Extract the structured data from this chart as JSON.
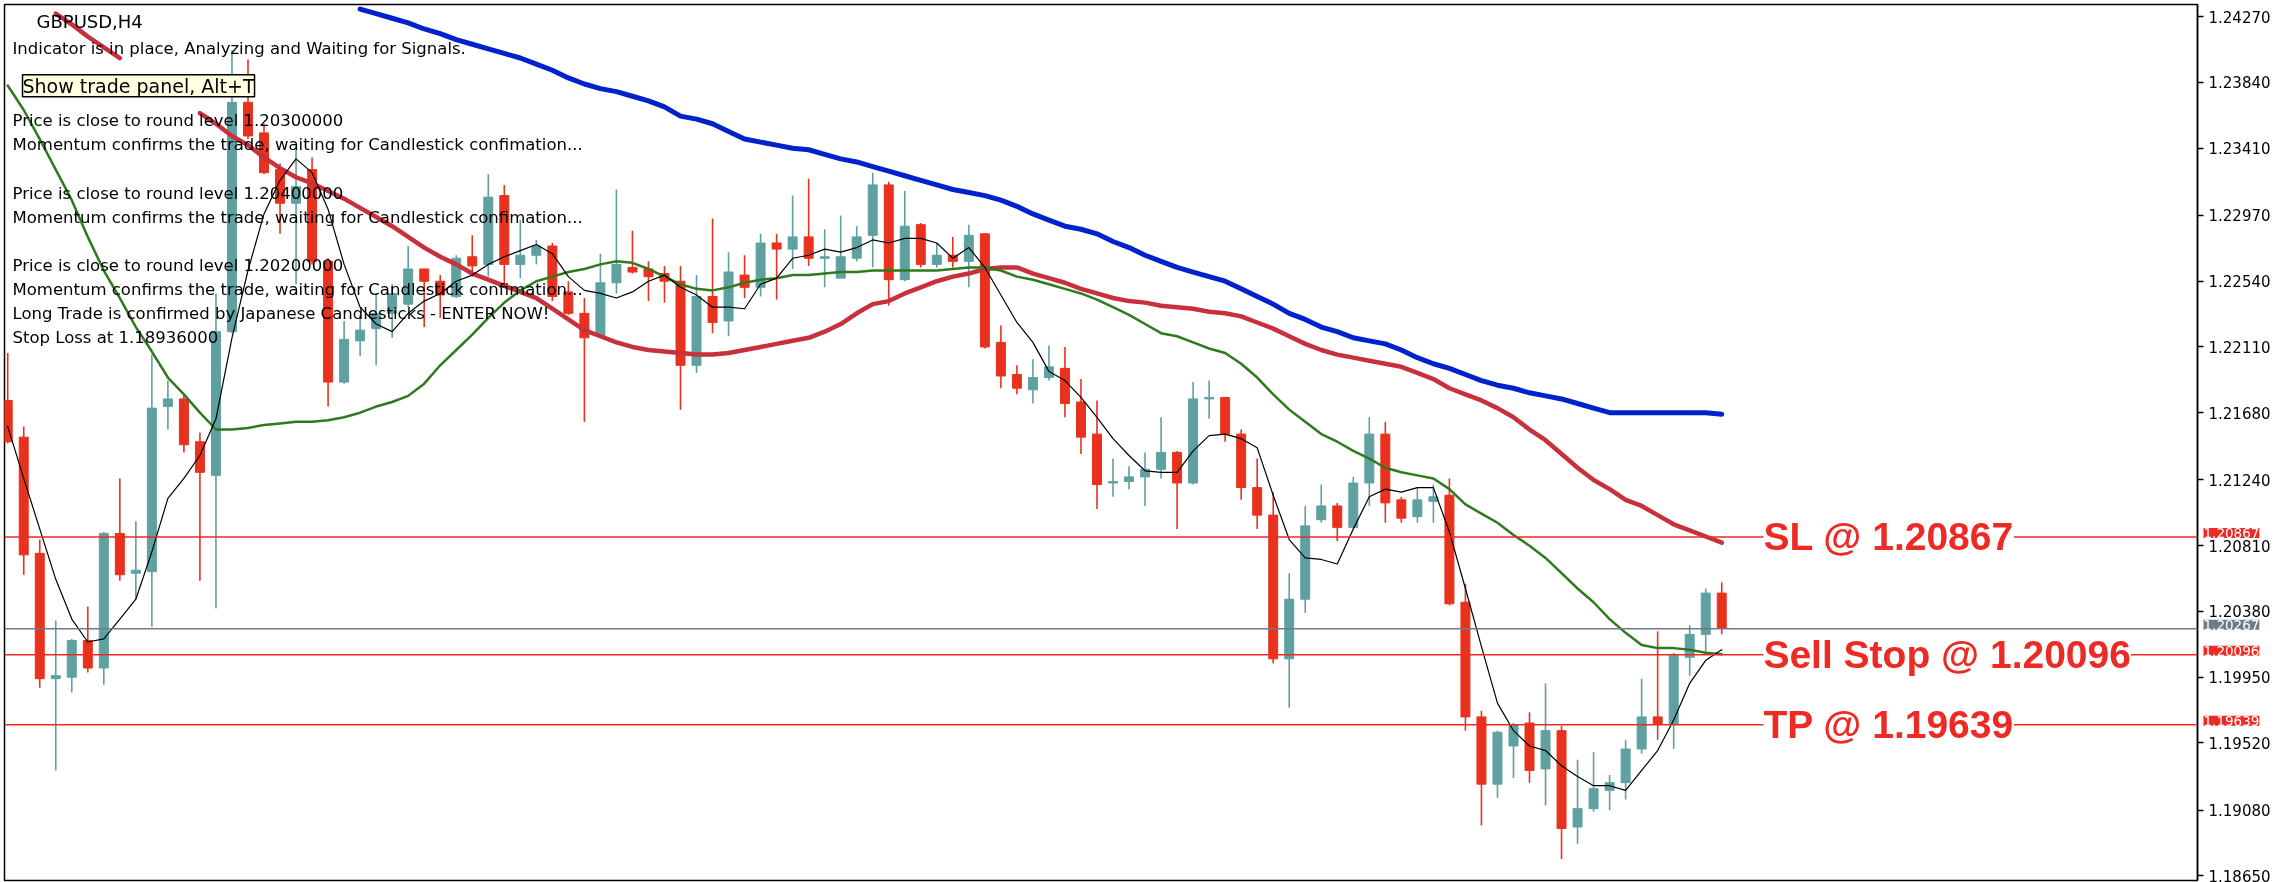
{
  "chart_data": {
    "type": "candlestick",
    "title": "GBPUSD,H4",
    "categories": [
      null,
      null,
      null,
      null,
      null,
      null,
      null,
      null,
      null,
      null,
      null,
      null,
      null,
      null,
      null,
      null,
      null,
      null,
      null,
      null,
      null,
      null,
      null,
      null,
      null,
      null,
      null,
      null,
      null,
      null,
      null,
      null,
      null,
      null,
      null,
      null,
      null,
      null,
      null,
      null,
      null,
      null,
      null,
      null,
      null,
      null,
      null,
      null,
      null,
      null,
      null,
      null,
      null,
      null,
      null,
      null,
      null,
      null,
      null,
      null,
      null,
      null,
      null,
      null,
      null,
      null,
      null,
      null,
      null,
      null,
      null,
      null,
      null,
      null,
      null,
      null,
      null,
      null,
      null,
      null,
      null,
      null,
      null,
      null,
      null,
      null,
      null,
      null,
      null,
      null,
      null,
      null,
      null,
      null,
      null,
      null,
      null,
      null,
      null,
      null,
      null,
      null,
      null,
      null,
      null,
      null,
      null,
      null
    ],
    "ylim": [
      1.1862,
      1.2435
    ],
    "yticks": [
      {
        "value": 1.2427,
        "label": "1.24270"
      },
      {
        "value": 1.2384,
        "label": "1.23840"
      },
      {
        "value": 1.2341,
        "label": "1.23410"
      },
      {
        "value": 1.2297,
        "label": "1.22970"
      },
      {
        "value": 1.2254,
        "label": "1.22540"
      },
      {
        "value": 1.2211,
        "label": "1.22110"
      },
      {
        "value": 1.2168,
        "label": "1.21680"
      },
      {
        "value": 1.2124,
        "label": "1.21240"
      },
      {
        "value": 1.2081,
        "label": "1.20810"
      },
      {
        "value": 1.2038,
        "label": "1.20380"
      },
      {
        "value": 1.1995,
        "label": "1.19950"
      },
      {
        "value": 1.1952,
        "label": "1.19520"
      },
      {
        "value": 1.1908,
        "label": "1.19080"
      },
      {
        "value": 1.1865,
        "label": "1.18650"
      }
    ],
    "tick_labels": "y",
    "series": [
      {
        "ohlc": [
          [
            1.2176,
            1.2207,
            1.2148,
            1.2149
          ],
          [
            1.2152,
            1.2159,
            1.2062,
            1.2075
          ],
          [
            1.2076,
            1.2085,
            1.1988,
            1.1994
          ],
          [
            1.1994,
            1.2032,
            1.1934,
            1.1996
          ],
          [
            1.1995,
            1.202,
            1.1985,
            1.2019
          ],
          [
            1.2019,
            1.2041,
            1.1998,
            1.2001
          ],
          [
            1.2001,
            1.209,
            1.199,
            1.2089
          ],
          [
            1.2089,
            1.2125,
            1.2058,
            1.2062
          ],
          [
            1.2063,
            1.2097,
            1.2046,
            1.2065
          ],
          [
            1.2064,
            1.2206,
            1.2028,
            1.2171
          ],
          [
            1.2172,
            1.2189,
            1.2157,
            1.2177
          ],
          [
            1.2177,
            1.218,
            1.2142,
            1.2147
          ],
          [
            1.2149,
            1.2155,
            1.2058,
            1.2129
          ],
          [
            1.2127,
            1.2246,
            1.204,
            1.2221
          ],
          [
            1.2221,
            1.2405,
            1.222,
            1.2371
          ],
          [
            1.2371,
            1.2399,
            1.2347,
            1.2349
          ],
          [
            1.2351,
            1.2357,
            1.2324,
            1.2325
          ],
          [
            1.2327,
            1.2331,
            1.2285,
            1.2305
          ],
          [
            1.2305,
            1.234,
            1.2252,
            1.2316
          ],
          [
            1.2327,
            1.2335,
            1.2265,
            1.2267
          ],
          [
            1.2267,
            1.2269,
            1.2172,
            1.2188
          ],
          [
            1.2188,
            1.2228,
            1.2187,
            1.2216
          ],
          [
            1.2215,
            1.2232,
            1.2205,
            1.2222
          ],
          [
            1.2223,
            1.2246,
            1.2199,
            1.2233
          ],
          [
            1.2233,
            1.2252,
            1.2217,
            1.2246
          ],
          [
            1.2239,
            1.2277,
            1.2237,
            1.2262
          ],
          [
            1.2262,
            1.2262,
            1.2224,
            1.2254
          ],
          [
            1.2254,
            1.2258,
            1.223,
            1.2245
          ],
          [
            1.2244,
            1.2271,
            1.2243,
            1.2269
          ],
          [
            1.227,
            1.2284,
            1.2257,
            1.2264
          ],
          [
            1.2265,
            1.2324,
            1.2257,
            1.2309
          ],
          [
            1.231,
            1.2317,
            1.225,
            1.2265
          ],
          [
            1.2265,
            1.2294,
            1.2256,
            1.2271
          ],
          [
            1.2271,
            1.2281,
            1.2265,
            1.2277
          ],
          [
            1.2277,
            1.2279,
            1.2241,
            1.2244
          ],
          [
            1.2247,
            1.2254,
            1.2232,
            1.2233
          ],
          [
            1.2233,
            1.2243,
            1.2162,
            1.2217
          ],
          [
            1.2218,
            1.2272,
            1.2217,
            1.2253
          ],
          [
            1.2253,
            1.2314,
            1.2246,
            1.2265
          ],
          [
            1.2263,
            1.2287,
            1.2259,
            1.226
          ],
          [
            1.2262,
            1.2267,
            1.2241,
            1.2257
          ],
          [
            1.2259,
            1.2264,
            1.224,
            1.2254
          ],
          [
            1.2254,
            1.2264,
            1.217,
            1.2199
          ],
          [
            1.2199,
            1.2258,
            1.2194,
            1.2244
          ],
          [
            1.2244,
            1.2295,
            1.222,
            1.2227
          ],
          [
            1.2228,
            1.2273,
            1.2218,
            1.226
          ],
          [
            1.2258,
            1.2271,
            1.2243,
            1.225
          ],
          [
            1.225,
            1.2285,
            1.2244,
            1.2279
          ],
          [
            1.2279,
            1.2285,
            1.2242,
            1.2275
          ],
          [
            1.2275,
            1.231,
            1.2262,
            1.2283
          ],
          [
            1.2283,
            1.2321,
            1.2264,
            1.2269
          ],
          [
            1.2269,
            1.2288,
            1.225,
            1.227
          ],
          [
            1.2256,
            1.2297,
            1.2256,
            1.227
          ],
          [
            1.2269,
            1.229,
            1.2267,
            1.2283
          ],
          [
            1.2284,
            1.2325,
            1.2263,
            1.2317
          ],
          [
            1.2317,
            1.2319,
            1.2238,
            1.2255
          ],
          [
            1.2255,
            1.2313,
            1.2254,
            1.229
          ],
          [
            1.2291,
            1.2292,
            1.2263,
            1.2265
          ],
          [
            1.2265,
            1.2279,
            1.2263,
            1.2271
          ],
          [
            1.2271,
            1.2283,
            1.2263,
            1.2267
          ],
          [
            1.2267,
            1.2291,
            1.225,
            1.2284
          ],
          [
            1.2285,
            1.2285,
            1.221,
            1.2211
          ],
          [
            1.2214,
            1.2225,
            1.2184,
            1.2192
          ],
          [
            1.2193,
            1.2199,
            1.218,
            1.2184
          ],
          [
            1.2183,
            1.2203,
            1.2174,
            1.2191
          ],
          [
            1.2191,
            1.2212,
            1.2189,
            1.2198
          ],
          [
            1.2197,
            1.2211,
            1.2165,
            1.2174
          ],
          [
            1.2175,
            1.219,
            1.2141,
            1.2152
          ],
          [
            1.2154,
            1.2176,
            1.2105,
            1.2121
          ],
          [
            1.2122,
            1.2138,
            1.2113,
            1.2123
          ],
          [
            1.2123,
            1.2133,
            1.2118,
            1.2126
          ],
          [
            1.2126,
            1.2142,
            1.2107,
            1.2131
          ],
          [
            1.2131,
            1.2165,
            1.2125,
            1.2142
          ],
          [
            1.2142,
            1.2143,
            1.2092,
            1.2122
          ],
          [
            1.2122,
            1.2188,
            1.2121,
            1.2177
          ],
          [
            1.2177,
            1.2189,
            1.2164,
            1.2178
          ],
          [
            1.2178,
            1.2178,
            1.2149,
            1.2154
          ],
          [
            1.2154,
            1.2157,
            1.2111,
            1.2119
          ],
          [
            1.2119,
            1.2138,
            1.2092,
            1.2101
          ],
          [
            1.2101,
            1.2116,
            1.2004,
            1.2007
          ],
          [
            1.2007,
            1.2063,
            1.1975,
            1.2046
          ],
          [
            1.2046,
            1.2107,
            1.2037,
            1.2094
          ],
          [
            1.2098,
            1.2121,
            1.2096,
            1.2107
          ],
          [
            1.2107,
            1.2109,
            1.2084,
            1.2093
          ],
          [
            1.2093,
            1.2126,
            1.2092,
            1.2122
          ],
          [
            1.2122,
            1.2165,
            1.2107,
            1.2154
          ],
          [
            1.2154,
            1.2162,
            1.2096,
            1.2109
          ],
          [
            1.2111,
            1.2113,
            1.2096,
            1.2099
          ],
          [
            1.21,
            1.2119,
            1.2096,
            1.2111
          ],
          [
            1.211,
            1.2121,
            1.2096,
            1.2113
          ],
          [
            1.2114,
            1.2125,
            1.2042,
            1.2043
          ],
          [
            1.2044,
            1.2056,
            1.196,
            1.1969
          ],
          [
            1.1969,
            1.1973,
            1.1898,
            1.1925
          ],
          [
            1.1925,
            1.196,
            1.1916,
            1.1959
          ],
          [
            1.195,
            1.1965,
            1.1929,
            1.1964
          ],
          [
            1.1965,
            1.1972,
            1.1926,
            1.1934
          ],
          [
            1.1935,
            1.1991,
            1.1911,
            1.196
          ],
          [
            1.196,
            1.1963,
            1.1876,
            1.1896
          ],
          [
            1.1897,
            1.1941,
            1.1886,
            1.1909
          ],
          [
            1.1909,
            1.1946,
            1.1907,
            1.1922
          ],
          [
            1.1921,
            1.1931,
            1.1908,
            1.1926
          ],
          [
            1.1926,
            1.1954,
            1.1915,
            1.1948
          ],
          [
            1.1948,
            1.1994,
            1.1945,
            1.1969
          ],
          [
            1.1969,
            1.2025,
            1.1954,
            1.1964
          ],
          [
            1.1964,
            1.2011,
            1.1948,
            1.2009
          ],
          [
            1.2008,
            1.2029,
            1.1996,
            1.2023
          ],
          [
            1.2023,
            1.2053,
            1.2011,
            1.205
          ],
          [
            1.205,
            1.2057,
            1.2023,
            1.2027
          ]
        ],
        "colors": [
          "#e8321e",
          "#e8321e",
          "#e8321e",
          "#5fa0a0",
          "#5fa0a0",
          "#e8321e",
          "#5fa0a0",
          "#e8321e",
          "#5fa0a0",
          "#5fa0a0",
          "#5fa0a0",
          "#e8321e",
          "#e8321e",
          "#5fa0a0",
          "#5fa0a0",
          "#e8321e",
          "#e8321e",
          "#e8321e",
          "#5fa0a0",
          "#e8321e",
          "#e8321e",
          "#5fa0a0",
          "#5fa0a0",
          "#5fa0a0",
          "#5fa0a0",
          "#5fa0a0",
          "#e8321e",
          "#e8321e",
          "#5fa0a0",
          "#e8321e",
          "#5fa0a0",
          "#e8321e",
          "#5fa0a0",
          "#5fa0a0",
          "#e8321e",
          "#e8321e",
          "#e8321e",
          "#5fa0a0",
          "#5fa0a0",
          "#e8321e",
          "#e8321e",
          "#e8321e",
          "#e8321e",
          "#5fa0a0",
          "#e8321e",
          "#5fa0a0",
          "#e8321e",
          "#5fa0a0",
          "#e8321e",
          "#5fa0a0",
          "#e8321e",
          "#5fa0a0",
          "#5fa0a0",
          "#5fa0a0",
          "#5fa0a0",
          "#e8321e",
          "#5fa0a0",
          "#e8321e",
          "#5fa0a0",
          "#e8321e",
          "#5fa0a0",
          "#e8321e",
          "#e8321e",
          "#e8321e",
          "#5fa0a0",
          "#5fa0a0",
          "#e8321e",
          "#e8321e",
          "#e8321e",
          "#5fa0a0",
          "#5fa0a0",
          "#5fa0a0",
          "#5fa0a0",
          "#e8321e",
          "#5fa0a0",
          "#5fa0a0",
          "#e8321e",
          "#e8321e",
          "#e8321e",
          "#e8321e",
          "#5fa0a0",
          "#5fa0a0",
          "#5fa0a0",
          "#e8321e",
          "#5fa0a0",
          "#5fa0a0",
          "#e8321e",
          "#e8321e",
          "#5fa0a0",
          "#5fa0a0",
          "#e8321e",
          "#e8321e",
          "#e8321e",
          "#5fa0a0",
          "#5fa0a0",
          "#e8321e",
          "#5fa0a0",
          "#e8321e",
          "#5fa0a0",
          "#5fa0a0",
          "#5fa0a0",
          "#5fa0a0",
          "#5fa0a0",
          "#e8321e",
          "#5fa0a0",
          "#5fa0a0",
          "#5fa0a0",
          "#e8321e"
        ]
      },
      {
        "type": "line",
        "color": "#0022cc",
        "values": [
          null,
          null,
          null,
          null,
          null,
          null,
          null,
          null,
          null,
          null,
          null,
          null,
          null,
          null,
          null,
          null,
          null,
          null,
          null,
          null,
          null,
          null,
          1.2432,
          1.2429,
          1.2426,
          1.2423,
          1.2419,
          1.2416,
          1.2412,
          1.2409,
          1.2406,
          1.2403,
          1.24,
          1.2396,
          1.2392,
          1.2387,
          1.2383,
          1.238,
          1.2378,
          1.2375,
          1.2372,
          1.2368,
          1.2362,
          1.236,
          1.2357,
          1.2352,
          1.2347,
          1.2345,
          1.2343,
          1.2341,
          1.234,
          1.2337,
          1.2334,
          1.2332,
          1.2329,
          1.2326,
          1.2323,
          1.232,
          1.2317,
          1.2314,
          1.2312,
          1.231,
          1.2307,
          1.2303,
          1.2298,
          1.2294,
          1.229,
          1.2288,
          1.2285,
          1.228,
          1.2276,
          1.2271,
          1.2267,
          1.2263,
          1.226,
          1.2257,
          1.2254,
          1.2249,
          1.2244,
          1.2239,
          1.2233,
          1.2229,
          1.2224,
          1.2221,
          1.2217,
          1.2215,
          1.2213,
          1.2209,
          1.2204,
          1.22,
          1.2197,
          1.2193,
          1.2189,
          1.2186,
          1.2184,
          1.2181,
          1.2179,
          1.2177,
          1.2174,
          1.2171,
          1.2168,
          1.2168,
          1.2168,
          1.2168,
          1.2168,
          1.2168,
          1.2168,
          1.2167
        ]
      },
      {
        "type": "line",
        "color": "#c8303c",
        "values": [
          null,
          null,
          null,
          1.2429,
          1.2422,
          1.2414,
          1.2407,
          1.24,
          null,
          null,
          null,
          null,
          1.2364,
          1.2357,
          1.2349,
          1.2343,
          1.2335,
          1.2328,
          1.2322,
          1.2318,
          1.2313,
          1.2308,
          1.2302,
          1.2296,
          1.229,
          1.2283,
          1.2276,
          1.227,
          1.2265,
          1.2259,
          1.2255,
          1.2251,
          1.2247,
          1.2243,
          1.2236,
          1.2229,
          1.2222,
          1.2218,
          1.2214,
          1.2211,
          1.2209,
          1.2208,
          1.2207,
          1.2206,
          1.2206,
          1.2207,
          1.2209,
          1.2211,
          1.2213,
          1.2215,
          1.2217,
          1.2221,
          1.2226,
          1.2233,
          1.2239,
          1.2241,
          1.2246,
          1.225,
          1.2254,
          1.2257,
          1.2259,
          1.2262,
          1.2263,
          1.2263,
          1.2259,
          1.2256,
          1.2253,
          1.2249,
          1.2246,
          1.2243,
          1.2241,
          1.224,
          1.2238,
          1.2237,
          1.2236,
          1.2234,
          1.2233,
          1.2231,
          1.2227,
          1.2223,
          1.2218,
          1.2213,
          1.2209,
          1.2206,
          1.2204,
          1.2202,
          1.22,
          1.2198,
          1.2194,
          1.219,
          1.2184,
          1.218,
          1.2176,
          1.2171,
          1.2165,
          1.2157,
          1.215,
          1.2141,
          1.2132,
          1.2124,
          1.2118,
          1.2111,
          1.2107,
          1.2101,
          1.2095,
          1.2091,
          1.2087,
          1.2083
        ]
      },
      {
        "type": "line",
        "color": "#2f7a1e",
        "values": [
          1.2382,
          1.2366,
          1.2347,
          1.2327,
          1.2307,
          1.2283,
          1.2261,
          1.2243,
          1.2224,
          1.2208,
          1.2191,
          1.218,
          1.2168,
          1.2157,
          1.2157,
          1.2158,
          1.216,
          1.2161,
          1.2162,
          1.2162,
          1.2163,
          1.2165,
          1.2168,
          1.2172,
          1.2175,
          1.2179,
          1.2187,
          1.2199,
          1.2209,
          1.2219,
          1.223,
          1.224,
          1.2248,
          1.2254,
          1.2257,
          1.226,
          1.2262,
          1.2265,
          1.2267,
          1.2266,
          1.2262,
          1.2257,
          1.2252,
          1.2249,
          1.2248,
          1.225,
          1.2253,
          1.2255,
          1.2256,
          1.2258,
          1.2258,
          1.2259,
          1.226,
          1.226,
          1.2261,
          1.2261,
          1.2261,
          1.2261,
          1.2261,
          1.2262,
          1.2263,
          1.2263,
          1.2261,
          1.2257,
          1.2255,
          1.2252,
          1.2249,
          1.2246,
          1.2242,
          1.2237,
          1.2232,
          1.2226,
          1.222,
          1.2218,
          1.2214,
          1.221,
          1.2207,
          1.22,
          1.2191,
          1.218,
          1.217,
          1.2162,
          1.2154,
          1.2149,
          1.2143,
          1.2138,
          1.2132,
          1.2129,
          1.2127,
          1.2125,
          1.2118,
          1.2108,
          1.2102,
          1.2096,
          1.2088,
          1.2081,
          1.2073,
          1.2063,
          1.2053,
          1.2044,
          1.2033,
          1.2024,
          1.2016,
          1.2014,
          1.2014,
          1.2013,
          1.2011,
          1.201
        ]
      },
      {
        "type": "line",
        "color": "#000000",
        "values": [
          1.2159,
          1.2125,
          1.2092,
          1.2059,
          1.2033,
          1.2018,
          1.202,
          1.2033,
          1.2046,
          1.2077,
          1.2112,
          1.2125,
          1.214,
          1.2164,
          1.2217,
          1.2261,
          1.2298,
          1.232,
          1.2334,
          1.2325,
          1.2301,
          1.2265,
          1.2237,
          1.2226,
          1.2221,
          1.2233,
          1.2241,
          1.2246,
          1.2254,
          1.2258,
          1.2265,
          1.227,
          1.2274,
          1.2278,
          1.2272,
          1.2257,
          1.2248,
          1.2246,
          1.2243,
          1.2247,
          1.2254,
          1.2258,
          1.225,
          1.2245,
          1.2237,
          1.2237,
          1.2236,
          1.2252,
          1.2256,
          1.2269,
          1.2271,
          1.2275,
          1.2273,
          1.2276,
          1.2281,
          1.2279,
          1.2282,
          1.2282,
          1.2279,
          1.2269,
          1.2276,
          1.2263,
          1.2245,
          1.2227,
          1.2214,
          1.2195,
          1.2189,
          1.2178,
          1.2165,
          1.2151,
          1.214,
          1.213,
          1.2129,
          1.2129,
          1.2143,
          1.2153,
          1.2154,
          1.2151,
          1.2145,
          1.2114,
          1.2085,
          1.2073,
          1.2072,
          1.2069,
          1.2092,
          1.2113,
          1.2118,
          1.2116,
          1.2119,
          1.2119,
          1.209,
          1.2053,
          1.2015,
          1.1978,
          1.196,
          1.195,
          1.1947,
          1.1937,
          1.193,
          1.1924,
          1.1924,
          1.1921,
          1.1934,
          1.1947,
          1.1967,
          1.1991,
          1.2006,
          1.2013
        ]
      }
    ],
    "ref_lines": [
      {
        "axis": "y",
        "value": 1.20867,
        "label": "1.20867",
        "color": "#ee2a24"
      },
      {
        "axis": "y",
        "value": 1.20267,
        "label": "1.20267",
        "color": "#6e7b8b"
      },
      {
        "axis": "y",
        "value": 1.20096,
        "label": "1.20096",
        "color": "#ee2a24"
      },
      {
        "axis": "y",
        "value": 1.19639,
        "label": "1.19639",
        "color": "#ee2a24"
      }
    ],
    "annotations": [
      "Indicator is in place, Analyzing and Waiting for Signals.",
      "Show trade panel, Alt+T",
      "Price is close to round level 1.20300000\nMomentum confirms the trade, waiting for Candlestick confimation...\n\nPrice is close to round level 1.20400000\nMomentum confirms the trade, waiting for Candlestick confimation...\n\nPrice is close to round level 1.20200000\nMomentum confirms the trade, waiting for Candlestick confimation...\nLong Trade is confirmed by Japanese Candlesticks - ENTER NOW!\nStop Loss at 1.18936000",
      {
        "text": "SL @ 1.20867",
        "y": 1.20867
      },
      {
        "text": "Sell Stop @ 1.20096",
        "y": 1.20096
      },
      {
        "text": "TP @ 1.19639",
        "y": 1.19639
      }
    ]
  }
}
